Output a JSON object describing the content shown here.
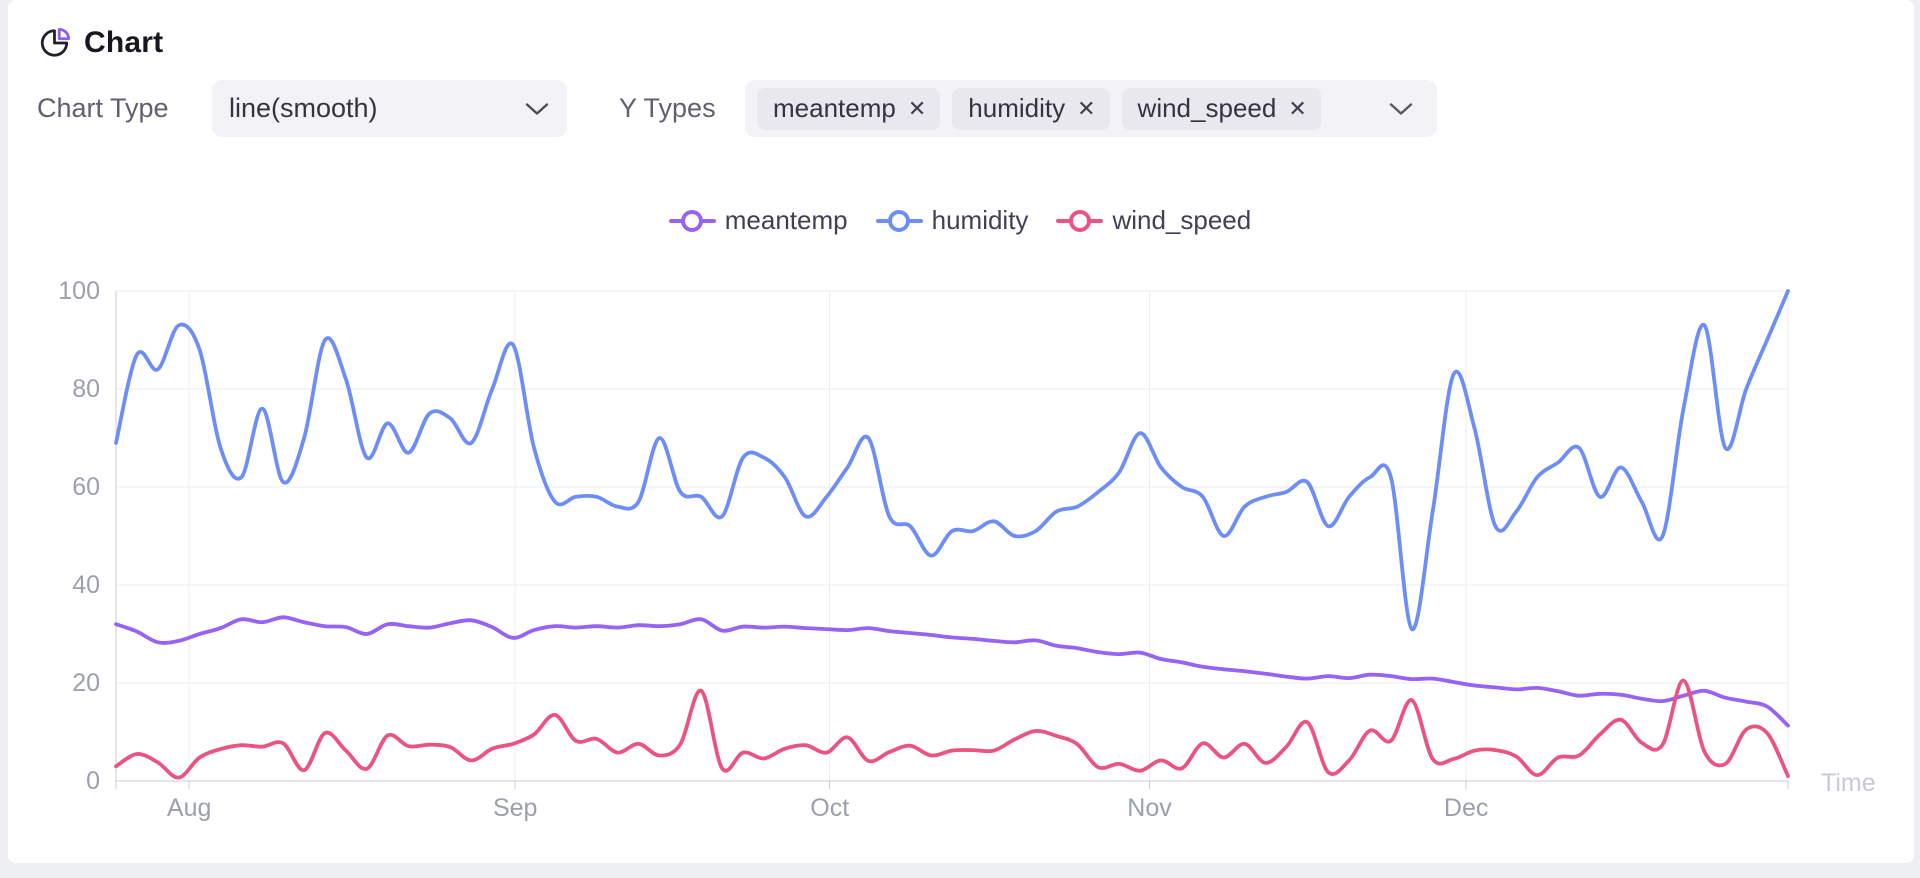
{
  "header": {
    "title": "Chart"
  },
  "controls": {
    "chart_type_label": "Chart Type",
    "chart_type_value": "line(smooth)",
    "y_types_label": "Y Types",
    "y_types": [
      "meantemp",
      "humidity",
      "wind_speed"
    ],
    "remove_glyph": "✕"
  },
  "legend": [
    {
      "label": "meantemp",
      "color": "#9663f2"
    },
    {
      "label": "humidity",
      "color": "#6e8ef7"
    },
    {
      "label": "wind_speed",
      "color": "#ea5480"
    }
  ],
  "chart_data": {
    "type": "line",
    "smooth": true,
    "xlabel": "Time",
    "ylim": [
      0,
      100
    ],
    "y_ticks": [
      0,
      20,
      40,
      60,
      80,
      100
    ],
    "grid": true,
    "legend_position": "top-center",
    "x_axis": {
      "day_step": 2,
      "total_days": 160,
      "months": [
        {
          "label": "Aug",
          "day": 7
        },
        {
          "label": "Sep",
          "day": 38.2
        },
        {
          "label": "Oct",
          "day": 68.3
        },
        {
          "label": "Nov",
          "day": 98.9
        },
        {
          "label": "Dec",
          "day": 129.2
        }
      ]
    },
    "series": [
      {
        "name": "meantemp",
        "color": "#9663f2",
        "values": [
          32,
          30.5,
          28.3,
          28.6,
          30,
          31.2,
          33,
          32.4,
          33.4,
          32.4,
          31.6,
          31.4,
          30,
          32,
          31.6,
          31.3,
          32.2,
          32.8,
          31.4,
          29.2,
          30.8,
          31.6,
          31.3,
          31.6,
          31.3,
          31.8,
          31.6,
          32,
          33,
          30.7,
          31.5,
          31.3,
          31.5,
          31.2,
          31,
          30.8,
          31.2,
          30.6,
          30.2,
          29.8,
          29.3,
          29,
          28.6,
          28.3,
          28.7,
          27.6,
          27.1,
          26.3,
          25.9,
          26.2,
          24.9,
          24.2,
          23.3,
          22.8,
          22.4,
          21.9,
          21.3,
          20.9,
          21.4,
          21,
          21.7,
          21.4,
          20.8,
          20.9,
          20.2,
          19.5,
          19.1,
          18.7,
          19,
          18.3,
          17.4,
          17.8,
          17.6,
          16.8,
          16.3,
          17.4,
          18.4,
          17,
          16.2,
          15.2,
          11.3
        ]
      },
      {
        "name": "humidity",
        "color": "#6e8ef7",
        "values": [
          69,
          87,
          84,
          93,
          88,
          68,
          62,
          76,
          61,
          70,
          90,
          82,
          66,
          73,
          67,
          75,
          74,
          69,
          80,
          89,
          68,
          57,
          58,
          58,
          56,
          57,
          70,
          59,
          58,
          54,
          66,
          66,
          62,
          54,
          58,
          64,
          70,
          54,
          52,
          46,
          51,
          51,
          53,
          50,
          51,
          55,
          56,
          59,
          63,
          71,
          64,
          60,
          58,
          50,
          56,
          58,
          59,
          61,
          52,
          58,
          62,
          62,
          31,
          55,
          83,
          72,
          52,
          55,
          62,
          65,
          68,
          58,
          64,
          57,
          50,
          76,
          93,
          68,
          80,
          90,
          100
        ]
      },
      {
        "name": "wind_speed",
        "color": "#ea5480",
        "values": [
          3,
          5.5,
          3.8,
          0.7,
          4.8,
          6.5,
          7.3,
          7,
          7.7,
          2.2,
          9.8,
          6.2,
          2.5,
          9.3,
          7.1,
          7.4,
          6.9,
          4.2,
          6.6,
          7.6,
          9.5,
          13.5,
          8.2,
          8.6,
          5.8,
          7.6,
          5.2,
          7.5,
          18.4,
          2.6,
          5.8,
          4.6,
          6.6,
          7.3,
          5.8,
          8.9,
          4.1,
          5.9,
          7.2,
          5.2,
          6.2,
          6.3,
          6.2,
          8.5,
          10.2,
          9.2,
          7.5,
          2.8,
          3.5,
          2.1,
          4.2,
          2.6,
          7.7,
          4.8,
          7.6,
          3.7,
          7,
          12,
          1.8,
          4.2,
          10.3,
          8.2,
          16.5,
          4.5,
          4.5,
          6.2,
          6.3,
          5,
          1.2,
          4.8,
          5.2,
          9.5,
          12.5,
          7.8,
          7.4,
          20.5,
          6,
          3.5,
          10.5,
          9.8,
          1
        ]
      }
    ],
    "colors": {
      "grid_line": "#ebedf1",
      "axis_line": "#c9ccd4",
      "tick_text": "#9ba0ad",
      "time_text": "#c6cad3"
    }
  }
}
